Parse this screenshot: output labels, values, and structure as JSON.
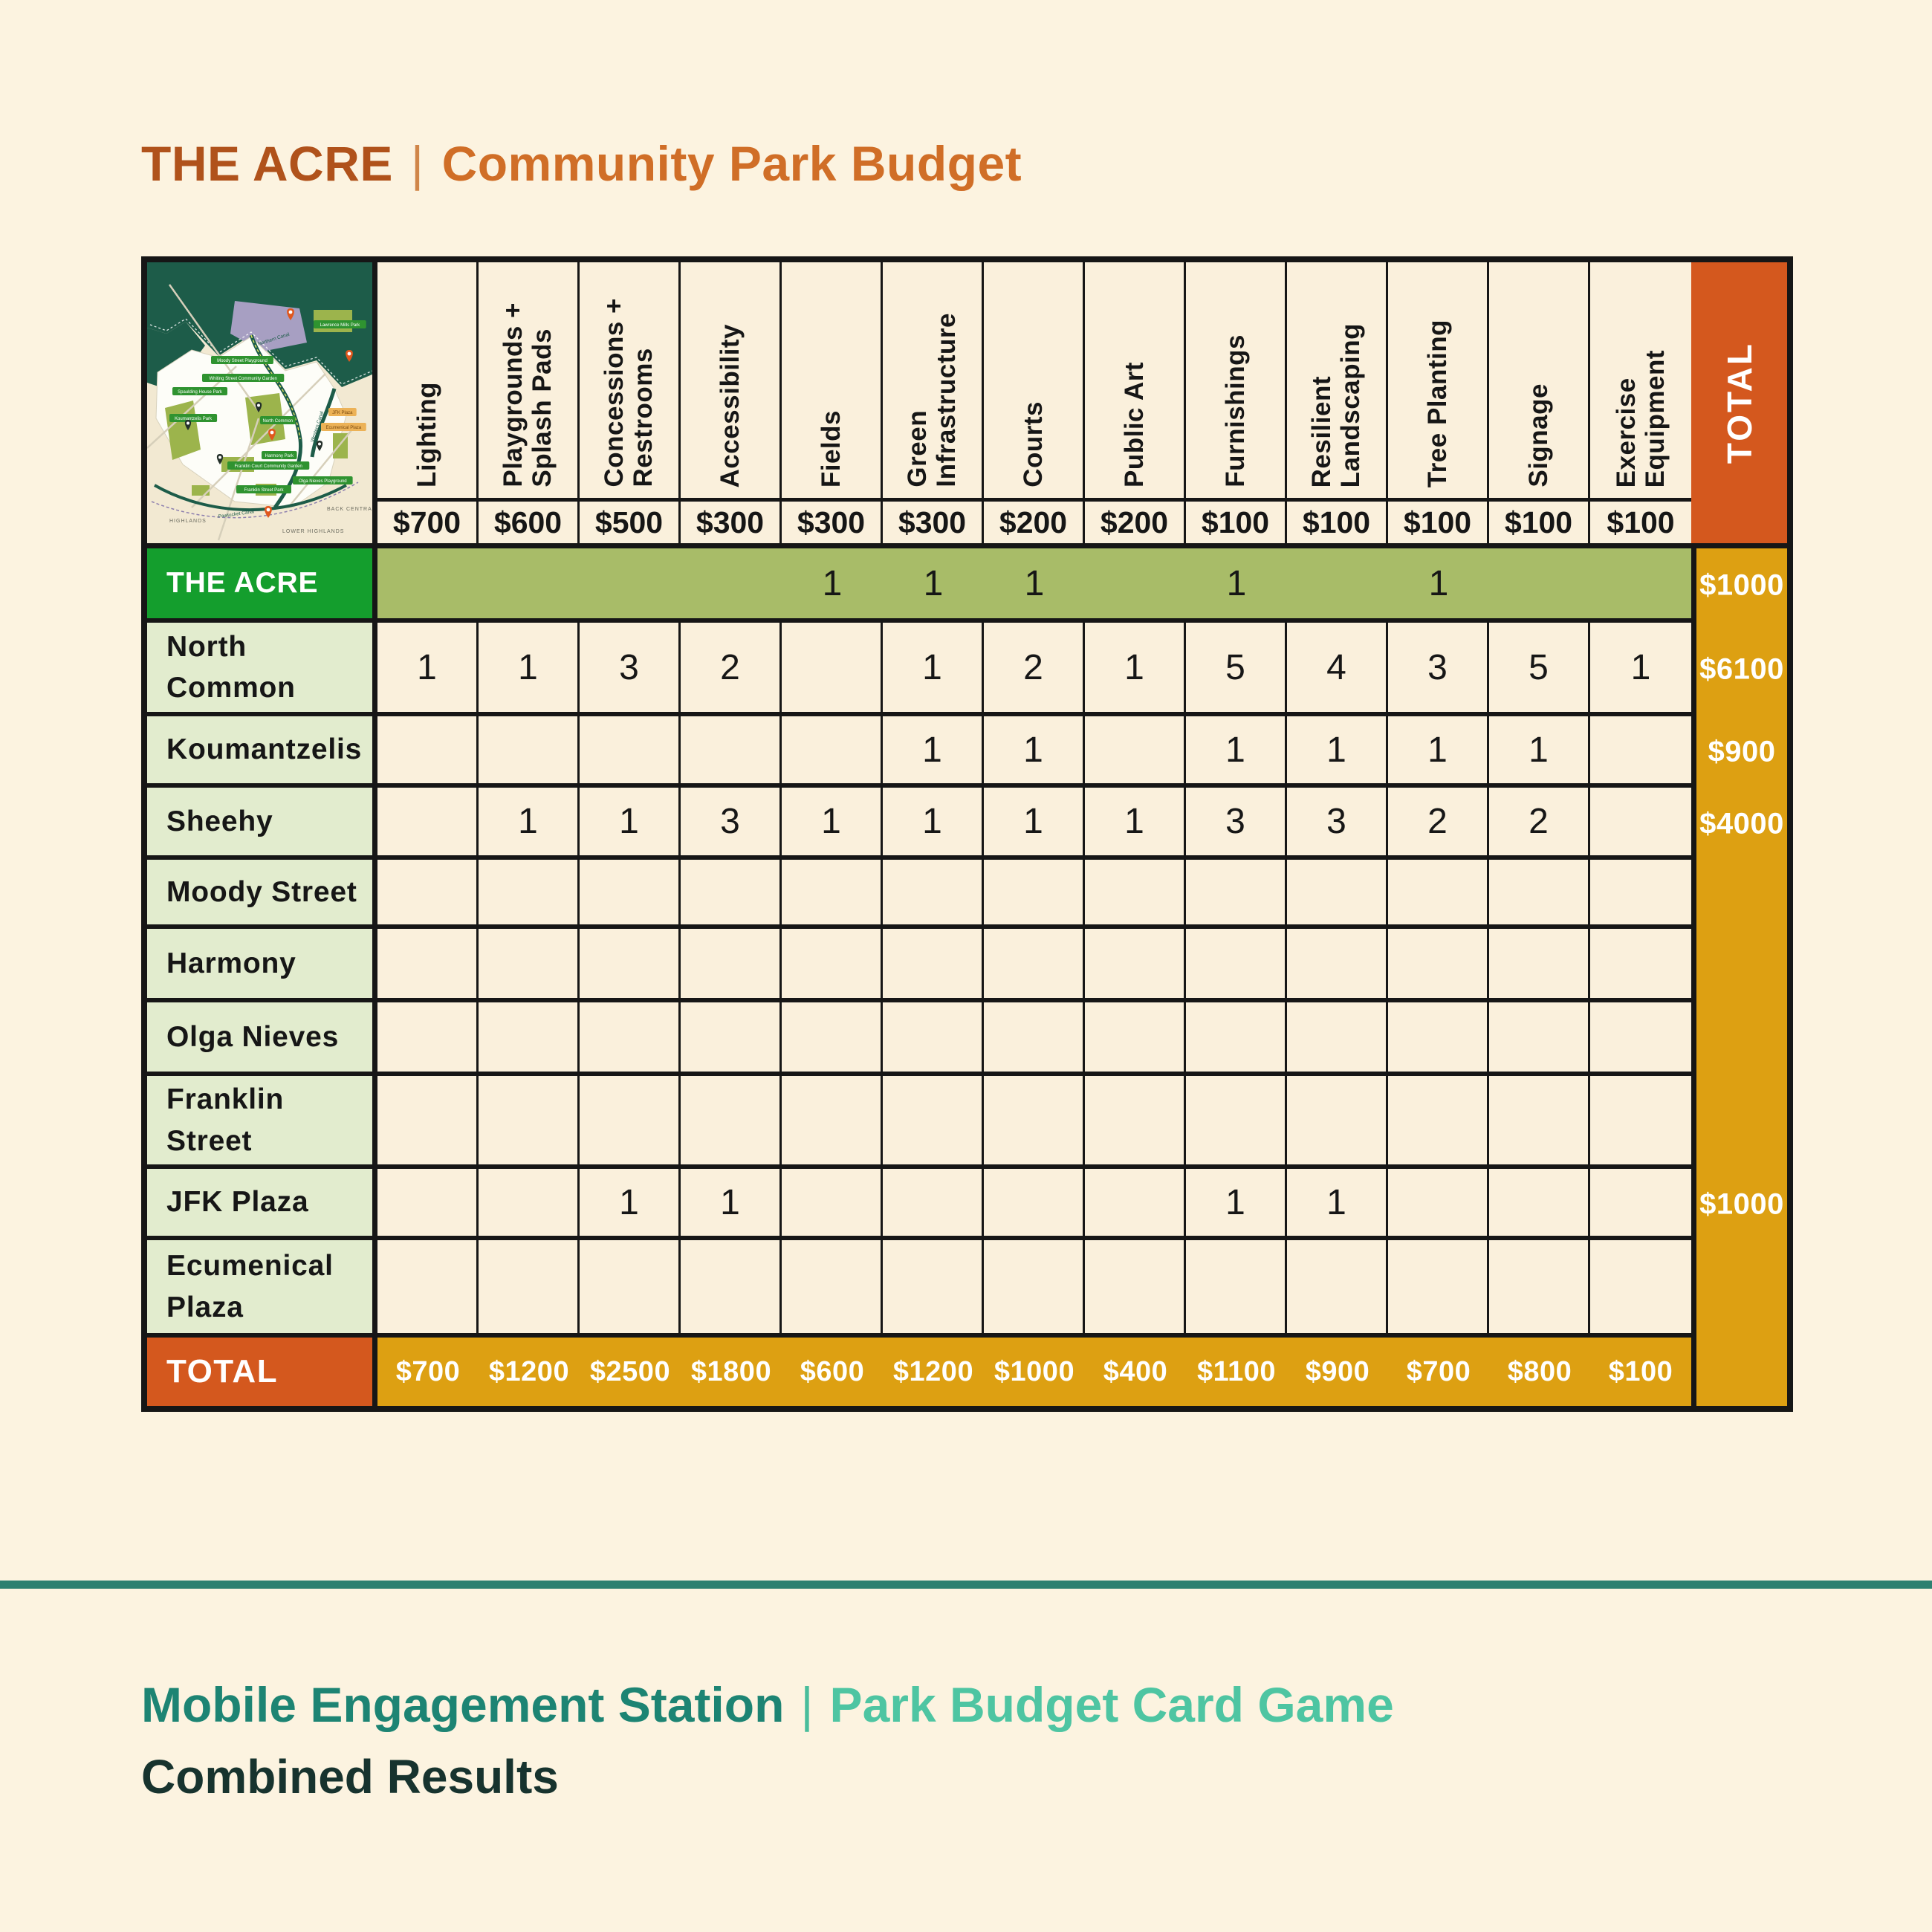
{
  "title": {
    "park": "THE ACRE",
    "separator": "|",
    "subtitle": "Community Park Budget"
  },
  "footer": {
    "line1_left": "Mobile Engagement Station",
    "separator": "|",
    "line1_right": "Park Budget Card Game",
    "line2": "Combined Results"
  },
  "colors": {
    "background": "#fcf3e0",
    "cell_cream": "#faf0dc",
    "label_green": "#e2ecce",
    "acre_green": "#149e2d",
    "olive_band": "#a8bc68",
    "gold": "#dda012",
    "dark_orange": "#d4581e",
    "border_black": "#161616",
    "title_rust": "#b0521b",
    "title_orange": "#d06e27",
    "teal_dark": "#1d8473",
    "teal_mint": "#4ec5a2",
    "footer_dark": "#17332e"
  },
  "map": {
    "name": "acre-neighborhood-map",
    "park_tags": [
      "Moody Street Playground",
      "Whiting Street Community Garden",
      "Spaulding House Park",
      "Koumantzelis Park",
      "North Common",
      "Harmony Park",
      "Franklin Court Community Garden",
      "Franklin Street Park",
      "Olga Nieves Playground",
      "Lawrence Mills Park"
    ],
    "plaza_tags": [
      "JFK Plaza",
      "Ecumenical Plaza"
    ],
    "area_labels": [
      "HIGHLANDS",
      "BACK CENTRAL",
      "LOWER HIGHLANDS"
    ],
    "canal_labels": [
      "Pawtucket Canal",
      "Western Canal",
      "Northern Canal"
    ]
  },
  "table": {
    "corner_total_label": "TOTAL",
    "columns": [
      {
        "label": "Lighting",
        "price": "$700"
      },
      {
        "label": "Playgrounds +\nSplash Pads",
        "price": "$600"
      },
      {
        "label": "Concessions +\nRestrooms",
        "price": "$500"
      },
      {
        "label": "Accessibility",
        "price": "$300"
      },
      {
        "label": "Fields",
        "price": "$300"
      },
      {
        "label": "Green\nInfrastructure",
        "price": "$300"
      },
      {
        "label": "Courts",
        "price": "$200"
      },
      {
        "label": "Public Art",
        "price": "$200"
      },
      {
        "label": "Furnishings",
        "price": "$100"
      },
      {
        "label": "Resilient\nLandscaping",
        "price": "$100"
      },
      {
        "label": "Tree Planting",
        "price": "$100"
      },
      {
        "label": "Signage",
        "price": "$100"
      },
      {
        "label": "Exercise\nEquipment",
        "price": "$100"
      }
    ],
    "rows": [
      {
        "name": "THE ACRE",
        "style": "acre",
        "counts": [
          "",
          "",
          "",
          "",
          "1",
          "1",
          "1",
          "",
          "1",
          "",
          "1",
          "",
          ""
        ],
        "total": "$1000"
      },
      {
        "name": "North\nCommon",
        "counts": [
          "1",
          "1",
          "3",
          "2",
          "",
          "1",
          "2",
          "1",
          "5",
          "4",
          "3",
          "5",
          "1"
        ],
        "total": "$6100"
      },
      {
        "name": "Koumantzelis",
        "counts": [
          "",
          "",
          "",
          "",
          "",
          "1",
          "1",
          "",
          "1",
          "1",
          "1",
          "1",
          ""
        ],
        "total": "$900"
      },
      {
        "name": "Sheehy",
        "counts": [
          "",
          "1",
          "1",
          "3",
          "1",
          "1",
          "1",
          "1",
          "3",
          "3",
          "2",
          "2",
          ""
        ],
        "total": "$4000"
      },
      {
        "name": "Moody Street",
        "counts": [
          "",
          "",
          "",
          "",
          "",
          "",
          "",
          "",
          "",
          "",
          "",
          "",
          ""
        ],
        "total": ""
      },
      {
        "name": "Harmony",
        "counts": [
          "",
          "",
          "",
          "",
          "",
          "",
          "",
          "",
          "",
          "",
          "",
          "",
          ""
        ],
        "total": ""
      },
      {
        "name": "Olga Nieves",
        "counts": [
          "",
          "",
          "",
          "",
          "",
          "",
          "",
          "",
          "",
          "",
          "",
          "",
          ""
        ],
        "total": ""
      },
      {
        "name": "Franklin\nStreet",
        "counts": [
          "",
          "",
          "",
          "",
          "",
          "",
          "",
          "",
          "",
          "",
          "",
          "",
          ""
        ],
        "total": ""
      },
      {
        "name": "JFK Plaza",
        "counts": [
          "",
          "",
          "1",
          "1",
          "",
          "",
          "",
          "",
          "1",
          "1",
          "",
          "",
          ""
        ],
        "total": "$1000"
      },
      {
        "name": "Ecumenical\nPlaza",
        "counts": [
          "",
          "",
          "",
          "",
          "",
          "",
          "",
          "",
          "",
          "",
          "",
          "",
          ""
        ],
        "total": ""
      }
    ],
    "totals_row": {
      "label": "TOTAL",
      "values": [
        "$700",
        "$1200",
        "$2500",
        "$1800",
        "$600",
        "$1200",
        "$1000",
        "$400",
        "$1100",
        "$900",
        "$700",
        "$800",
        "$100"
      ]
    }
  }
}
